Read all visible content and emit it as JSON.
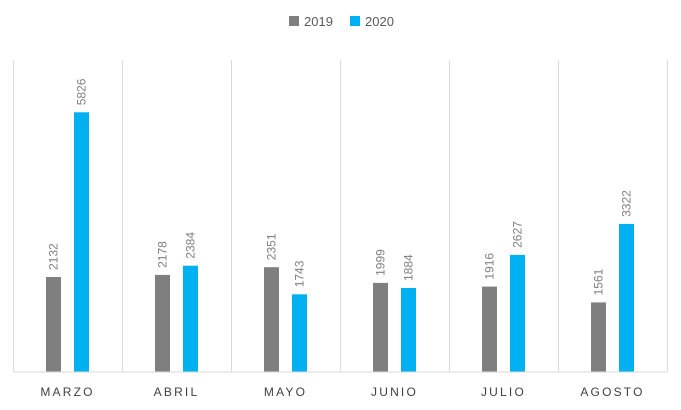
{
  "chart_data": {
    "type": "bar",
    "categories": [
      "MARZO",
      "ABRIL",
      "MAYO",
      "JUNIO",
      "JULIO",
      "AGOSTO"
    ],
    "series": [
      {
        "name": "2019",
        "color": "#7f7f7f",
        "values": [
          2132,
          2178,
          2351,
          1999,
          1916,
          1561
        ]
      },
      {
        "name": "2020",
        "color": "#00b0f0",
        "values": [
          5826,
          2384,
          1743,
          1884,
          2627,
          3322
        ]
      }
    ],
    "title": "",
    "xlabel": "",
    "ylabel": "",
    "ylim": [
      0,
      7000
    ],
    "grid": "vertical separators between categories",
    "legend_position": "top-center",
    "data_labels": "rotated, above bars"
  }
}
